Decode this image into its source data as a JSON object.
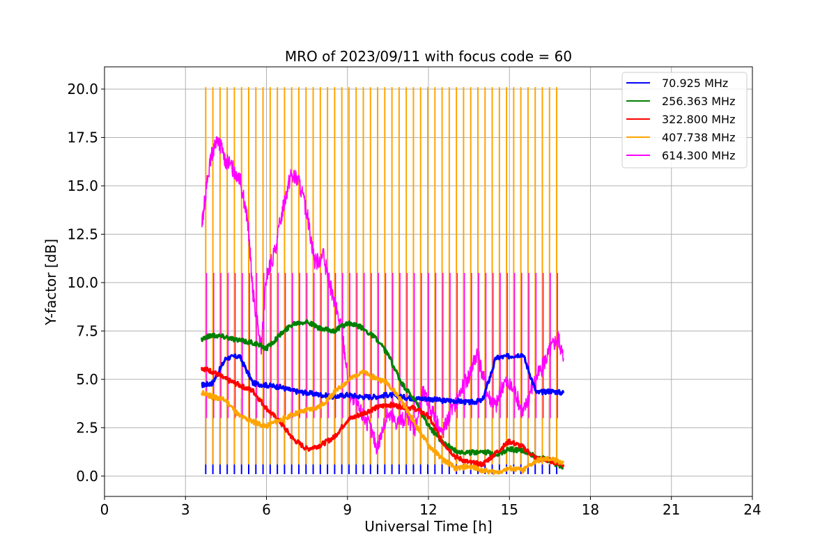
{
  "chart_data": {
    "type": "line",
    "title": "MRO of 2023/09/11 with focus code = 60",
    "xlabel": "Universal Time [h]",
    "ylabel": "Y-factor [dB]",
    "xlim": [
      0,
      24
    ],
    "ylim": [
      -1.05,
      21.15
    ],
    "xticks": [
      0,
      3,
      6,
      9,
      12,
      15,
      18,
      21,
      24
    ],
    "xtick_labels": [
      "0",
      "3",
      "6",
      "9",
      "12",
      "15",
      "18",
      "21",
      "24"
    ],
    "yticks": [
      0,
      2.5,
      5,
      7.5,
      10,
      12.5,
      15,
      17.5,
      20
    ],
    "ytick_labels": [
      "0.0",
      "2.5",
      "5.0",
      "7.5",
      "10.0",
      "12.5",
      "15.0",
      "17.5",
      "20.0"
    ],
    "grid": true,
    "legend_position": "top-right",
    "series": [
      {
        "name": " 70.925 MHz",
        "color": "#0000ff",
        "x": [
          3.6,
          4.0,
          4.5,
          5.0,
          5.5,
          6.0,
          6.5,
          7.0,
          7.5,
          8.0,
          8.5,
          9.0,
          9.5,
          10.0,
          10.5,
          11.0,
          11.5,
          12.0,
          12.5,
          13.0,
          13.5,
          14.0,
          14.5,
          15.0,
          15.5,
          16.0,
          16.5,
          17.0
        ],
        "y": [
          4.7,
          4.8,
          6.1,
          6.2,
          4.8,
          4.7,
          4.6,
          4.4,
          4.3,
          4.2,
          4.1,
          4.2,
          4.1,
          4.1,
          4.2,
          4.1,
          4.0,
          4.0,
          3.9,
          3.9,
          3.8,
          3.9,
          6.1,
          6.2,
          6.3,
          4.3,
          4.4,
          4.3
        ]
      },
      {
        "name": "256.363 MHz",
        "color": "#008000",
        "x": [
          3.6,
          4.0,
          4.5,
          5.0,
          5.5,
          6.0,
          6.5,
          7.0,
          7.5,
          8.0,
          8.5,
          9.0,
          9.5,
          10.0,
          10.5,
          11.0,
          11.5,
          12.0,
          12.5,
          13.0,
          13.5,
          14.0,
          14.5,
          15.0,
          15.5,
          16.0,
          16.5,
          17.0
        ],
        "y": [
          7.1,
          7.3,
          7.2,
          7.0,
          6.9,
          6.6,
          7.3,
          7.9,
          8.0,
          7.6,
          7.5,
          7.9,
          7.7,
          7.2,
          6.3,
          4.8,
          3.9,
          2.6,
          1.8,
          1.3,
          1.2,
          1.3,
          1.1,
          1.4,
          1.3,
          1.0,
          0.8,
          0.4
        ]
      },
      {
        "name": "322.800 MHz",
        "color": "#ff0000",
        "x": [
          3.6,
          4.0,
          4.5,
          5.0,
          5.5,
          6.0,
          6.5,
          7.0,
          7.5,
          8.0,
          8.5,
          9.0,
          9.5,
          10.0,
          10.5,
          11.0,
          11.5,
          12.0,
          12.5,
          13.0,
          13.5,
          14.0,
          14.5,
          15.0,
          15.5,
          16.0,
          16.5,
          17.0
        ],
        "y": [
          5.6,
          5.4,
          5.0,
          4.7,
          4.4,
          3.5,
          2.8,
          1.9,
          1.4,
          1.6,
          2.0,
          2.9,
          3.2,
          3.5,
          3.7,
          3.6,
          3.5,
          3.1,
          1.8,
          1.0,
          0.7,
          0.6,
          1.2,
          1.8,
          1.5,
          0.9,
          0.8,
          0.6
        ]
      },
      {
        "name": "407.738 MHz",
        "color": "#ffa500",
        "x": [
          3.6,
          4.0,
          4.5,
          5.0,
          5.5,
          6.0,
          6.5,
          7.0,
          7.5,
          8.0,
          8.5,
          9.0,
          9.5,
          10.0,
          10.5,
          11.0,
          11.5,
          12.0,
          12.5,
          13.0,
          13.5,
          14.0,
          14.5,
          15.0,
          15.5,
          16.0,
          16.5,
          17.0
        ],
        "y": [
          4.3,
          4.1,
          3.9,
          3.1,
          2.8,
          2.6,
          2.9,
          3.2,
          3.4,
          3.6,
          4.3,
          4.9,
          5.4,
          5.1,
          4.8,
          3.9,
          2.7,
          1.6,
          0.9,
          0.4,
          0.5,
          0.3,
          0.2,
          0.4,
          0.3,
          0.8,
          0.9,
          0.7
        ]
      },
      {
        "name": "614.300 MHz",
        "color": "#ff00ff",
        "x": [
          3.6,
          3.8,
          4.0,
          4.2,
          4.5,
          4.8,
          5.0,
          5.3,
          5.5,
          5.8,
          6.0,
          6.3,
          6.6,
          6.9,
          7.2,
          7.5,
          7.8,
          8.1,
          8.5,
          8.8,
          9.1,
          9.5,
          9.8,
          10.1,
          10.5,
          10.8,
          11.2,
          11.5,
          11.8,
          12.2,
          12.5,
          12.8,
          13.2,
          13.5,
          13.8,
          14.2,
          14.5,
          14.8,
          15.2,
          15.5,
          15.8,
          16.2,
          16.5,
          16.8,
          17.0
        ],
        "y": [
          13.0,
          15.2,
          16.8,
          17.4,
          16.3,
          15.8,
          15.5,
          13.2,
          9.5,
          6.5,
          10.3,
          11.5,
          13.8,
          15.6,
          15.2,
          13.6,
          11.0,
          11.4,
          9.0,
          7.5,
          4.1,
          3.3,
          2.6,
          1.5,
          3.2,
          2.8,
          3.0,
          2.5,
          4.3,
          3.2,
          2.2,
          3.2,
          4.4,
          5.2,
          6.4,
          4.2,
          3.6,
          4.9,
          4.4,
          3.2,
          4.5,
          5.6,
          6.5,
          7.2,
          6.1
        ]
      }
    ],
    "switching_pulses": {
      "x_start": 3.75,
      "x_end": 16.75,
      "count": 50,
      "top_value": 20.1,
      "mid_value": 10.5,
      "low_value": 0.1
    }
  }
}
